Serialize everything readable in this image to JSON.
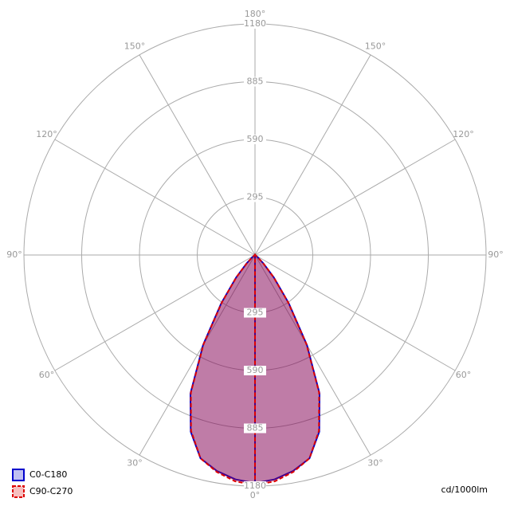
{
  "chart_data": {
    "type": "polar",
    "rlim": [
      0,
      1180
    ],
    "rticks": [
      295,
      590,
      885,
      1180
    ],
    "angle_ticks": [
      {
        "value": 0,
        "label": "0°"
      },
      {
        "value": 30,
        "label": "30°"
      },
      {
        "value": 60,
        "label": "60°"
      },
      {
        "value": 90,
        "label": "90°"
      },
      {
        "value": 120,
        "label": "120°"
      },
      {
        "value": 150,
        "label": "150°"
      },
      {
        "value": 180,
        "label": "180°"
      }
    ],
    "angles": [
      0,
      5,
      10,
      15,
      20,
      25,
      30,
      35,
      40,
      45,
      50,
      55,
      60,
      65,
      70,
      75,
      80,
      85,
      90
    ],
    "series": [
      {
        "name": "C0-C180",
        "color": "#0000cc",
        "dashed": false,
        "values": [
          1165,
          1150,
          1120,
          1075,
          960,
          780,
          530,
          300,
          150,
          60,
          20,
          5,
          0,
          0,
          0,
          0,
          0,
          0,
          0
        ]
      },
      {
        "name": "C90-C270",
        "color": "#dd0000",
        "dashed": true,
        "values": [
          1175,
          1160,
          1125,
          1075,
          955,
          775,
          525,
          295,
          148,
          58,
          19,
          5,
          0,
          0,
          0,
          0,
          0,
          0,
          0
        ]
      }
    ],
    "unit_label": "cd/1000lm",
    "grid": true
  }
}
